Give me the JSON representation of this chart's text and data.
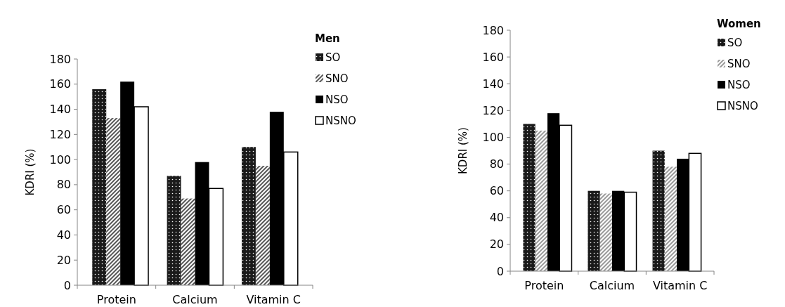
{
  "chart_data": [
    {
      "type": "bar",
      "categories": [
        "Protein",
        "Calcium",
        "Vitamin C"
      ],
      "ylabel": "KDRI (%)",
      "legend_title": "Men",
      "legend": "top right",
      "ylim": [
        0,
        180
      ],
      "yticks": [
        0,
        20,
        40,
        60,
        80,
        100,
        120,
        140,
        160,
        180
      ],
      "grid": false,
      "series": [
        {
          "name": "SO",
          "color": "#1a1a1a",
          "values": [
            156,
            87,
            110
          ]
        },
        {
          "name": "SNO",
          "color": "#555555",
          "values": [
            133,
            69,
            95
          ]
        },
        {
          "name": "NSO",
          "color": "#000000",
          "values": [
            162,
            98,
            138
          ]
        },
        {
          "name": "NSNO",
          "color": "#ffffff",
          "values": [
            142,
            77,
            106
          ]
        }
      ]
    },
    {
      "type": "bar",
      "categories": [
        "Protein",
        "Calcium",
        "Vitamin C"
      ],
      "ylabel": "KDRI (%)",
      "legend_title": "Women",
      "legend": "top right",
      "ylim": [
        0,
        180
      ],
      "yticks": [
        0,
        20,
        40,
        60,
        80,
        100,
        120,
        140,
        160,
        180
      ],
      "grid": false,
      "series": [
        {
          "name": "SO",
          "color": "#1a1a1a",
          "values": [
            110,
            60,
            90
          ]
        },
        {
          "name": "SNO",
          "color": "#999999",
          "values": [
            105,
            58,
            78
          ]
        },
        {
          "name": "NSO",
          "color": "#000000",
          "values": [
            118,
            60,
            84
          ]
        },
        {
          "name": "NSNO",
          "color": "#ffffff",
          "values": [
            109,
            59,
            88
          ]
        }
      ]
    }
  ]
}
